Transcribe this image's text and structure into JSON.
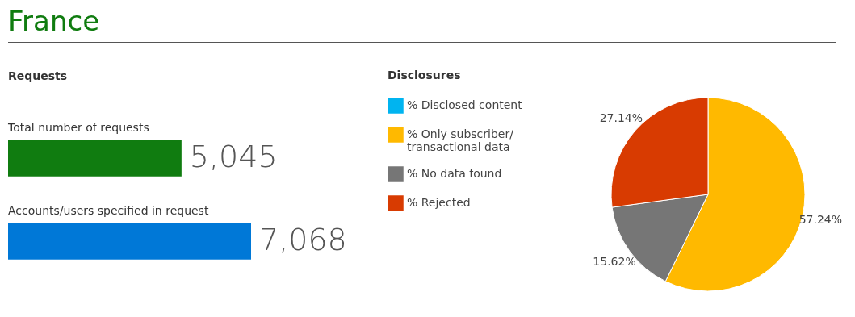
{
  "chart_data": [
    {
      "type": "bar",
      "orientation": "horizontal",
      "title": "France",
      "subtitle": "Requests",
      "categories": [
        "Total number of requests",
        "Accounts/users specified in request"
      ],
      "values": [
        5045,
        7068
      ],
      "value_labels": [
        "5,045",
        "7,068"
      ],
      "colors": [
        "#107c10",
        "#0078d7"
      ]
    },
    {
      "type": "pie",
      "title": "Disclosures",
      "categories": [
        "% Disclosed content",
        "% Only subscriber/ transactional data",
        "% No data found",
        "% Rejected"
      ],
      "values": [
        0,
        57.24,
        15.62,
        27.14
      ],
      "value_labels": [
        null,
        "57.24%",
        "15.62%",
        "27.14%"
      ],
      "colors": [
        "#00b4f0",
        "#ffb900",
        "#767676",
        "#d83b01"
      ],
      "legend": "left"
    }
  ]
}
